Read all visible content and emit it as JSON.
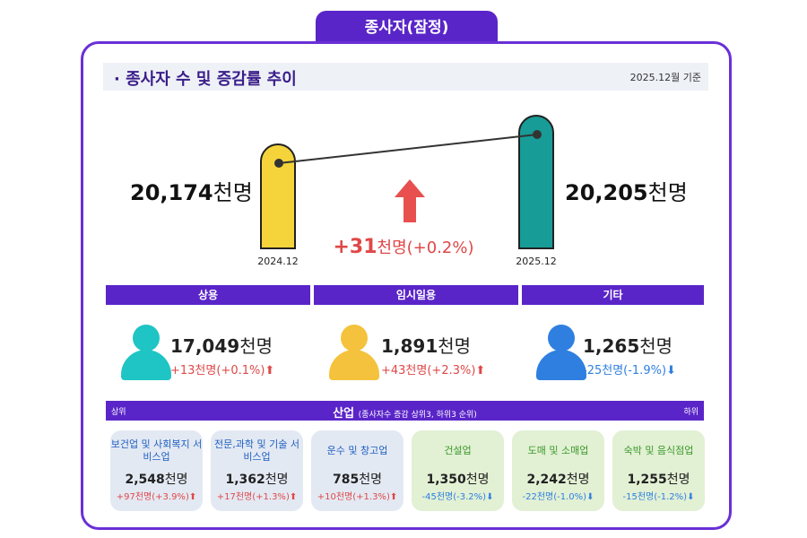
{
  "title_tab": "종사자(잠정)",
  "section": {
    "title": "· 종사자 수 및 증감률 추이",
    "date": "2025.12월 기준"
  },
  "unit": "천명",
  "chart_data": {
    "type": "bar",
    "categories": [
      "2024.12",
      "2025.12"
    ],
    "values": [
      20174,
      20205
    ],
    "value_labels": [
      "20,174",
      "20,205"
    ],
    "unit": "천명",
    "change": "+31",
    "change_pct": "(+0.2%)",
    "colors": [
      "#f4d43a",
      "#179c98"
    ]
  },
  "types": [
    {
      "label": "상용",
      "value": "17,049",
      "change": "+13천명(+0.1%)",
      "direction": "up",
      "color": "#1fc4c4"
    },
    {
      "label": "임시일용",
      "value": "1,891",
      "change": "+43천명(+2.3%)",
      "direction": "up",
      "color": "#f4c23c"
    },
    {
      "label": "기타",
      "value": "1,265",
      "change": "-25천명(-1.9%)",
      "direction": "down",
      "color": "#2f7fe0"
    }
  ],
  "industry": {
    "title": "산업",
    "subtitle": "(종사자수 증감 상위3, 하위3 순위)",
    "left": "상위",
    "right": "하위",
    "cards": [
      {
        "name": "보건업 및 사회복지 서비스업",
        "value": "2,548",
        "change": "+97천명(+3.9%)",
        "direction": "up"
      },
      {
        "name": "전문,과학 및 기술 서비스업",
        "value": "1,362",
        "change": "+17천명(+1.3%)",
        "direction": "up"
      },
      {
        "name": "운수 및 창고업",
        "value": "785",
        "change": "+10천명(+1.3%)",
        "direction": "up"
      },
      {
        "name": "건설업",
        "value": "1,350",
        "change": "-45천명(-3.2%)",
        "direction": "down"
      },
      {
        "name": "도매 및 소매업",
        "value": "2,242",
        "change": "-22천명(-1.0%)",
        "direction": "down"
      },
      {
        "name": "숙박 및 음식점업",
        "value": "1,255",
        "change": "-15천명(-1.2%)",
        "direction": "down"
      }
    ]
  },
  "colors": {
    "accent": "#5a25c8",
    "up": "#e04848",
    "down": "#2f7fe0"
  }
}
